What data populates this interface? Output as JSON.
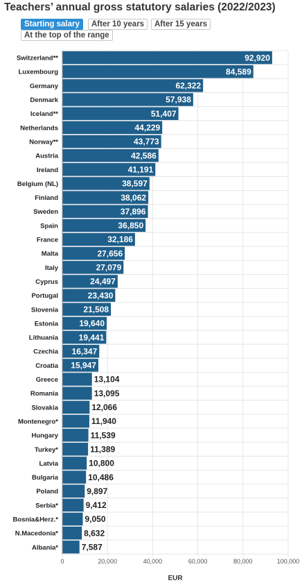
{
  "title": "Teachers’ annual gross statutory salaries (2022/2023)",
  "tabs": [
    {
      "label": "Starting salary",
      "active": true
    },
    {
      "label": "After 10 years",
      "active": false
    },
    {
      "label": "After 15 years",
      "active": false
    },
    {
      "label": "At the top of the range",
      "active": false
    }
  ],
  "colors": {
    "bar": "#1f5f8b",
    "tab_active": "#2d8fd6"
  },
  "chart_data": {
    "type": "bar",
    "orientation": "horizontal",
    "xlabel": "EUR",
    "xlim": [
      0,
      100000
    ],
    "xticks": [
      0,
      20000,
      40000,
      60000,
      80000,
      100000
    ],
    "xtick_labels": [
      "0",
      "20,000",
      "40,000",
      "60,000",
      "80,000",
      "100,000"
    ],
    "grid": true,
    "categories": [
      "Switzerland**",
      "Luxembourg",
      "Germany",
      "Denmark",
      "Iceland**",
      "Netherlands",
      "Norway**",
      "Austria",
      "Ireland",
      "Belgium (NL)",
      "Finland",
      "Sweden",
      "Spain",
      "France",
      "Malta",
      "Italy",
      "Cyprus",
      "Portugal",
      "Slovenia",
      "Estonia",
      "Lithuania",
      "Czechia",
      "Croatia",
      "Greece",
      "Romania",
      "Slovakia",
      "Montenegro*",
      "Hungary",
      "Turkey*",
      "Latvia",
      "Bulgaria",
      "Poland",
      "Serbia*",
      "Bosnia&Herz.*",
      "N.Macedonia*",
      "Albania*"
    ],
    "values": [
      92920,
      84589,
      62322,
      57938,
      51407,
      44229,
      43773,
      42586,
      41191,
      38597,
      38062,
      37896,
      36850,
      32186,
      27656,
      27079,
      24497,
      23430,
      21508,
      19640,
      19441,
      16347,
      15947,
      13104,
      13095,
      12066,
      11940,
      11539,
      11389,
      10800,
      10486,
      9897,
      9412,
      9050,
      8632,
      7587
    ],
    "value_labels": [
      "92,920",
      "84,589",
      "62,322",
      "57,938",
      "51,407",
      "44,229",
      "43,773",
      "42,586",
      "41,191",
      "38,597",
      "38,062",
      "37,896",
      "36,850",
      "32,186",
      "27,656",
      "27,079",
      "24,497",
      "23,430",
      "21,508",
      "19,640",
      "19,441",
      "16,347",
      "15,947",
      "13,104",
      "13,095",
      "12,066",
      "11,940",
      "11,539",
      "11,389",
      "10,800",
      "10,486",
      "9,897",
      "9,412",
      "9,050",
      "8,632",
      "7,587"
    ]
  }
}
